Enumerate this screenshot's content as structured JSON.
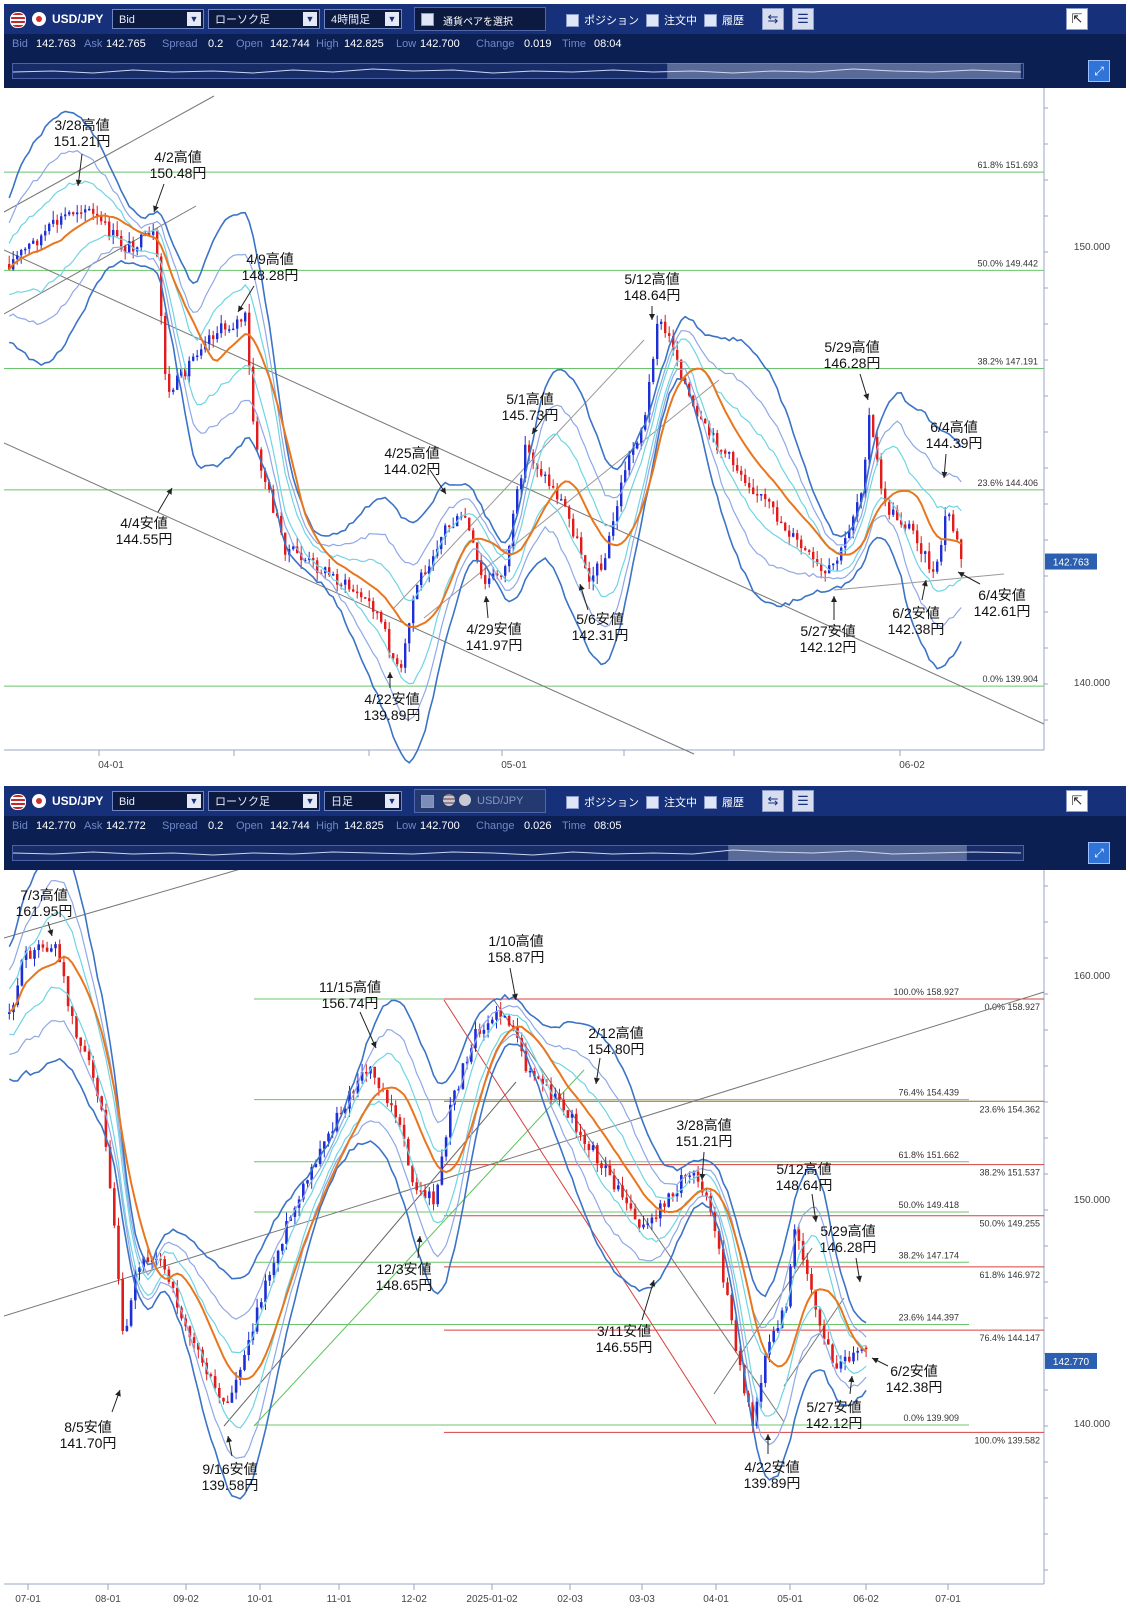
{
  "panels": [
    {
      "id": "top",
      "toolbar": {
        "pair": "USD/JPY",
        "price_type": "Bid",
        "chart_type": "ローソク足",
        "timeframe": "4時間足",
        "select_pair": "通貨ペアを選択",
        "checks": [
          "ポジション",
          "注文中",
          "履歴"
        ]
      },
      "info": {
        "bid_label": "Bid",
        "bid": "142.763",
        "ask_label": "Ask",
        "ask": "142.765",
        "spread_label": "Spread",
        "spread": "0.2",
        "open_label": "Open",
        "open": "142.744",
        "high_label": "High",
        "high": "142.825",
        "low_label": "Low",
        "low": "142.700",
        "change_label": "Change",
        "change": "0.019",
        "time_label": "Time",
        "time": "08:04"
      },
      "navigator": {
        "window_start": 0.648,
        "window_end": 0.998
      },
      "chart_data": {
        "type": "candlestick",
        "price_tag": "142.763",
        "y_ticks": [
          "150.000",
          "140.000"
        ],
        "x_ticks": [
          "04-01",
          "05-01",
          "06-02"
        ],
        "fib_levels": [
          "61.8%  151.693",
          "50.0%  149.442",
          "38.2%  147.191",
          "23.6%  144.406",
          "0.0%  139.904"
        ],
        "annotations": [
          {
            "date": "3/28高値",
            "price": "151.21円"
          },
          {
            "date": "4/2高値",
            "price": "150.48円"
          },
          {
            "date": "4/9高値",
            "price": "148.28円"
          },
          {
            "date": "4/4安値",
            "price": "144.55円"
          },
          {
            "date": "4/25高値",
            "price": "144.02円"
          },
          {
            "date": "5/1高値",
            "price": "145.73円"
          },
          {
            "date": "5/12高値",
            "price": "148.64円"
          },
          {
            "date": "4/29安値",
            "price": "141.97円"
          },
          {
            "date": "5/6安値",
            "price": "142.31円"
          },
          {
            "date": "4/22安値",
            "price": "139.89円"
          },
          {
            "date": "5/29高値",
            "price": "146.28円"
          },
          {
            "date": "6/4高値",
            "price": "144.39円"
          },
          {
            "date": "6/4安値",
            "price": "142.61円"
          },
          {
            "date": "6/2安値",
            "price": "142.38円"
          },
          {
            "date": "5/27安値",
            "price": "142.12円"
          }
        ]
      }
    },
    {
      "id": "bottom",
      "toolbar": {
        "pair": "USD/JPY",
        "price_type": "Bid",
        "chart_type": "ローソク足",
        "timeframe": "日足",
        "select_pair": "USD/JPY",
        "checks": [
          "ポジション",
          "注文中",
          "履歴"
        ]
      },
      "info": {
        "bid_label": "Bid",
        "bid": "142.770",
        "ask_label": "Ask",
        "ask": "142.772",
        "spread_label": "Spread",
        "spread": "0.2",
        "open_label": "Open",
        "open": "142.744",
        "high_label": "High",
        "high": "142.825",
        "low_label": "Low",
        "low": "142.700",
        "change_label": "Change",
        "change": "0.026",
        "time_label": "Time",
        "time": "08:05"
      },
      "navigator": {
        "window_start": 0.708,
        "window_end": 0.945
      },
      "chart_data": {
        "type": "candlestick",
        "price_tag": "142.770",
        "y_ticks": [
          "160.000",
          "150.000",
          "140.000"
        ],
        "x_ticks": [
          "07-01",
          "08-01",
          "09-02",
          "10-01",
          "11-01",
          "12-02",
          "2025-01-02",
          "02-03",
          "03-03",
          "04-01",
          "05-01",
          "06-02",
          "07-01"
        ],
        "fib_left": [
          "100.0%  158.927",
          "76.4%  154.439",
          "61.8%  151.662",
          "50.0%  149.418",
          "38.2%  147.174",
          "23.6%  144.397",
          "0.0%  139.909"
        ],
        "fib_right": [
          "0.0%  158.927",
          "23.6%  154.362",
          "38.2%  151.537",
          "50.0%  149.255",
          "61.8%  146.972",
          "76.4%  144.147",
          "100.0%  139.582"
        ],
        "annotations": [
          {
            "date": "7/3高値",
            "price": "161.95円"
          },
          {
            "date": "1/10高値",
            "price": "158.87円"
          },
          {
            "date": "11/15高値",
            "price": "156.74円"
          },
          {
            "date": "2/12高値",
            "price": "154.80円"
          },
          {
            "date": "3/28高値",
            "price": "151.21円"
          },
          {
            "date": "5/12高値",
            "price": "148.64円"
          },
          {
            "date": "5/29高値",
            "price": "146.28円"
          },
          {
            "date": "12/3安値",
            "price": "148.65円"
          },
          {
            "date": "3/11安値",
            "price": "146.55円"
          },
          {
            "date": "6/2安値",
            "price": "142.38円"
          },
          {
            "date": "5/27安値",
            "price": "142.12円"
          },
          {
            "date": "8/5安値",
            "price": "141.70円"
          },
          {
            "date": "9/16安値",
            "price": "139.58円"
          },
          {
            "date": "4/22安値",
            "price": "139.89円"
          }
        ]
      }
    }
  ]
}
